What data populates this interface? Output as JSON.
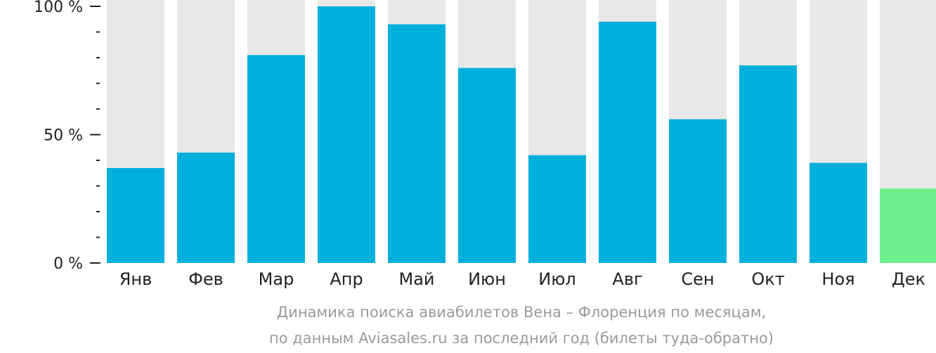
{
  "chart_data": {
    "type": "bar",
    "categories": [
      "Янв",
      "Фев",
      "Мар",
      "Апр",
      "Май",
      "Июн",
      "Июл",
      "Авг",
      "Сен",
      "Окт",
      "Ноя",
      "Дек"
    ],
    "values": [
      37,
      43,
      81,
      100,
      93,
      76,
      42,
      94,
      56,
      77,
      39,
      29
    ],
    "highlighted": [
      "Дек"
    ],
    "ylim": [
      0,
      100
    ],
    "yticks": [
      {
        "value": 0,
        "label": "0 %"
      },
      {
        "value": 50,
        "label": "50 %"
      },
      {
        "value": 100,
        "label": "100 %"
      }
    ],
    "minor_tick_step": 10,
    "caption_line1": "Динамика поиска авиабилетов Вена – Флоренция по месяцам,",
    "caption_line2": "по данным Aviasales.ru за последний год (билеты туда-обратно)",
    "colors": {
      "bar": "#00b0dc",
      "bar_highlight": "#6ef08c",
      "bar_background": "#e8e8e8",
      "axis": "#222222",
      "text": "#222222",
      "caption": "#9a9a9a"
    }
  }
}
